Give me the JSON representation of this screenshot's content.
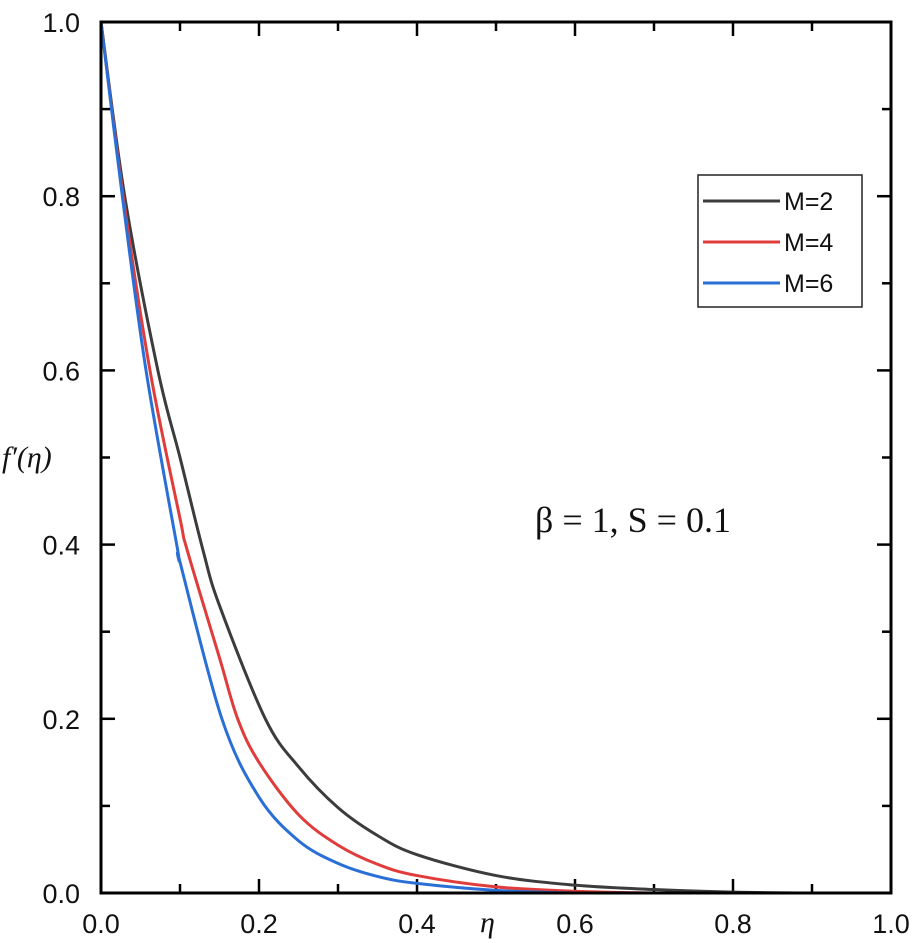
{
  "chart_data": {
    "type": "line",
    "title": "",
    "xlabel": "η",
    "ylabel": "f′(η)",
    "xlim": [
      0.0,
      1.0
    ],
    "ylim": [
      0.0,
      1.0
    ],
    "xticks": [
      "0.0",
      "0.2",
      "0.4",
      "0.6",
      "0.8",
      "1.0"
    ],
    "yticks": [
      "0.0",
      "0.2",
      "0.4",
      "0.6",
      "0.8",
      "1.0"
    ],
    "grid": false,
    "legend_position": "upper right",
    "annotation": "β = 1, S = 0.1",
    "series": [
      {
        "name": "M=2",
        "color": "#3c3c3c",
        "x": [
          0,
          0.03,
          0.072,
          0.1,
          0.129,
          0.15,
          0.208,
          0.25,
          0.3,
          0.35,
          0.4,
          0.5,
          0.6,
          0.7,
          0.8,
          0.9,
          1.0
        ],
        "y": [
          1.0,
          0.8,
          0.6,
          0.5,
          0.394,
          0.33,
          0.2,
          0.145,
          0.098,
          0.066,
          0.044,
          0.02,
          0.009,
          0.004,
          0.001,
          0.0,
          0.0
        ]
      },
      {
        "name": "M=4",
        "color": "#e03c3c",
        "x": [
          0,
          0.028,
          0.062,
          0.1,
          0.109,
          0.15,
          0.173,
          0.2,
          0.25,
          0.3,
          0.35,
          0.4,
          0.5,
          0.6,
          0.7,
          0.8,
          1.0
        ],
        "y": [
          1.0,
          0.8,
          0.6,
          0.43,
          0.394,
          0.27,
          0.2,
          0.15,
          0.09,
          0.055,
          0.033,
          0.02,
          0.007,
          0.002,
          0.0,
          0.0,
          0.0
        ]
      },
      {
        "name": "M=6",
        "color": "#2a6fd6",
        "x": [
          0,
          0.027,
          0.057,
          0.097,
          0.1,
          0.153,
          0.2,
          0.25,
          0.3,
          0.35,
          0.4,
          0.5,
          0.6,
          0.7,
          1.0
        ],
        "y": [
          1.0,
          0.8,
          0.6,
          0.394,
          0.38,
          0.2,
          0.11,
          0.06,
          0.034,
          0.019,
          0.011,
          0.003,
          0.0,
          0.0,
          0.0
        ]
      }
    ]
  },
  "legend": {
    "items": [
      {
        "label": "M=2",
        "color": "#3c3c3c"
      },
      {
        "label": "M=4",
        "color": "#e03c3c"
      },
      {
        "label": "M=6",
        "color": "#2a6fd6"
      }
    ]
  },
  "labels": {
    "xlabel": "η",
    "ylabel": "f′(η)",
    "annotation": "β = 1, S = 0.1"
  }
}
